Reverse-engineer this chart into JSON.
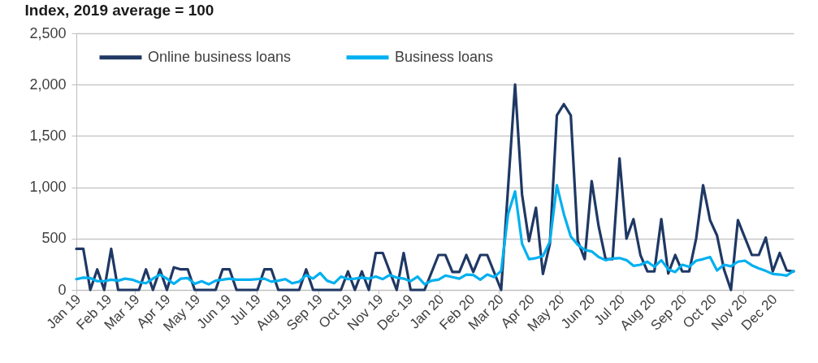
{
  "chart_data": {
    "type": "line",
    "ylabel": "Index, 2019 average = 100",
    "x": [
      "2019-01-01",
      "2019-01-08",
      "2019-01-15",
      "2019-01-22",
      "2019-01-29",
      "2019-02-05",
      "2019-02-12",
      "2019-02-19",
      "2019-02-26",
      "2019-03-05",
      "2019-03-12",
      "2019-03-19",
      "2019-03-26",
      "2019-04-02",
      "2019-04-09",
      "2019-04-16",
      "2019-04-23",
      "2019-04-30",
      "2019-05-07",
      "2019-05-14",
      "2019-05-21",
      "2019-05-28",
      "2019-06-04",
      "2019-06-11",
      "2019-06-18",
      "2019-06-25",
      "2019-07-02",
      "2019-07-09",
      "2019-07-16",
      "2019-07-23",
      "2019-07-30",
      "2019-08-06",
      "2019-08-13",
      "2019-08-20",
      "2019-08-27",
      "2019-09-03",
      "2019-09-10",
      "2019-09-17",
      "2019-09-24",
      "2019-10-01",
      "2019-10-08",
      "2019-10-15",
      "2019-10-22",
      "2019-10-29",
      "2019-11-05",
      "2019-11-12",
      "2019-11-19",
      "2019-11-26",
      "2019-12-03",
      "2019-12-10",
      "2019-12-17",
      "2019-12-24",
      "2019-12-31",
      "2020-01-07",
      "2020-01-14",
      "2020-01-21",
      "2020-01-28",
      "2020-02-04",
      "2020-02-11",
      "2020-02-18",
      "2020-02-25",
      "2020-03-03",
      "2020-03-10",
      "2020-03-17",
      "2020-03-24",
      "2020-03-31",
      "2020-04-07",
      "2020-04-14",
      "2020-04-21",
      "2020-04-28",
      "2020-05-05",
      "2020-05-12",
      "2020-05-19",
      "2020-05-26",
      "2020-06-02",
      "2020-06-09",
      "2020-06-16",
      "2020-06-23",
      "2020-06-30",
      "2020-07-07",
      "2020-07-14",
      "2020-07-21",
      "2020-07-28",
      "2020-08-04",
      "2020-08-11",
      "2020-08-18",
      "2020-08-25",
      "2020-09-01",
      "2020-09-08",
      "2020-09-15",
      "2020-09-22",
      "2020-09-29",
      "2020-10-06",
      "2020-10-13",
      "2020-10-20",
      "2020-10-27",
      "2020-11-03",
      "2020-11-10",
      "2020-11-17",
      "2020-11-24",
      "2020-12-01",
      "2020-12-08",
      "2020-12-15",
      "2020-12-22"
    ],
    "xlim": [
      "2019-01-01",
      "2020-12-22"
    ],
    "xticks": [
      {
        "value": "2019-01",
        "label": "Jan 19"
      },
      {
        "value": "2019-02",
        "label": "Feb 19"
      },
      {
        "value": "2019-03",
        "label": "Mar 19"
      },
      {
        "value": "2019-04",
        "label": "Apr 19"
      },
      {
        "value": "2019-05",
        "label": "May 19"
      },
      {
        "value": "2019-06",
        "label": "Jun 19"
      },
      {
        "value": "2019-07",
        "label": "Jul 19"
      },
      {
        "value": "2019-08",
        "label": "Aug 19"
      },
      {
        "value": "2019-09",
        "label": "Sep 19"
      },
      {
        "value": "2019-10",
        "label": "Oct 19"
      },
      {
        "value": "2019-11",
        "label": "Nov 19"
      },
      {
        "value": "2019-12",
        "label": "Dec 19"
      },
      {
        "value": "2020-01",
        "label": "Jan 20"
      },
      {
        "value": "2020-02",
        "label": "Feb 20"
      },
      {
        "value": "2020-03",
        "label": "Mar 20"
      },
      {
        "value": "2020-04",
        "label": "Apr 20"
      },
      {
        "value": "2020-05",
        "label": "May 20"
      },
      {
        "value": "2020-06",
        "label": "Jun 20"
      },
      {
        "value": "2020-07",
        "label": "Jul 20"
      },
      {
        "value": "2020-08",
        "label": "Aug 20"
      },
      {
        "value": "2020-09",
        "label": "Sep 20"
      },
      {
        "value": "2020-10",
        "label": "Oct 20"
      },
      {
        "value": "2020-11",
        "label": "Nov 20"
      },
      {
        "value": "2020-12",
        "label": "Dec 20"
      }
    ],
    "ylim": [
      0,
      2500
    ],
    "yticks": [
      {
        "value": 0,
        "label": "0"
      },
      {
        "value": 500,
        "label": "500"
      },
      {
        "value": 1000,
        "label": "1,000"
      },
      {
        "value": 1500,
        "label": "1,500"
      },
      {
        "value": 2000,
        "label": "2,000"
      },
      {
        "value": 2500,
        "label": "2,500"
      }
    ],
    "grid": "y",
    "legend": "top left",
    "line_style": "solid",
    "series": [
      {
        "name": "Online business loans",
        "color": "#1f3864",
        "values": [
          400,
          400,
          0,
          200,
          0,
          400,
          0,
          0,
          0,
          0,
          200,
          0,
          200,
          0,
          220,
          200,
          200,
          0,
          0,
          0,
          0,
          200,
          200,
          0,
          0,
          0,
          0,
          200,
          200,
          0,
          0,
          0,
          0,
          200,
          0,
          0,
          0,
          0,
          0,
          180,
          0,
          180,
          0,
          360,
          360,
          180,
          0,
          360,
          0,
          0,
          0,
          170,
          340,
          340,
          175,
          175,
          340,
          175,
          340,
          340,
          170,
          0,
          1000,
          2000,
          930,
          475,
          800,
          155,
          450,
          1700,
          1810,
          1700,
          480,
          300,
          1060,
          620,
          300,
          300,
          1280,
          500,
          690,
          340,
          180,
          180,
          690,
          160,
          340,
          180,
          180,
          500,
          1020,
          680,
          530,
          200,
          0,
          680,
          510,
          340,
          340,
          510,
          180,
          360,
          190,
          180
        ]
      },
      {
        "name": "Business loans",
        "color": "#00b0f0",
        "values": [
          105,
          120,
          115,
          85,
          85,
          100,
          90,
          110,
          100,
          75,
          65,
          110,
          150,
          110,
          60,
          110,
          115,
          60,
          85,
          55,
          90,
          100,
          110,
          100,
          100,
          100,
          105,
          110,
          80,
          90,
          105,
          65,
          80,
          145,
          110,
          165,
          90,
          65,
          130,
          105,
          110,
          120,
          110,
          130,
          105,
          145,
          120,
          110,
          85,
          130,
          55,
          90,
          100,
          140,
          125,
          110,
          150,
          145,
          100,
          150,
          125,
          185,
          740,
          960,
          450,
          300,
          310,
          330,
          470,
          1020,
          740,
          520,
          440,
          390,
          375,
          320,
          290,
          305,
          310,
          290,
          235,
          245,
          275,
          225,
          290,
          200,
          175,
          245,
          225,
          285,
          300,
          320,
          190,
          245,
          230,
          275,
          285,
          240,
          210,
          185,
          155,
          150,
          140,
          185
        ]
      }
    ]
  }
}
